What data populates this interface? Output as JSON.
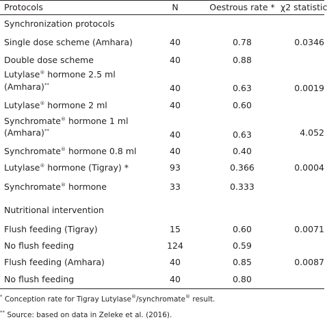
{
  "header": {
    "protocols": "Protocols",
    "n": "N",
    "rate": "Oestrous rate *",
    "chi": "χ2 statistic"
  },
  "sections": {
    "sync": "Synchronization protocols",
    "nutri": "Nutritional intervention"
  },
  "rows": [
    {
      "label": "Single dose scheme (Amhara)",
      "n": "40",
      "rate": "0.78",
      "chi": "0.0346"
    },
    {
      "label": "Double dose scheme",
      "n": "40",
      "rate": "0.88",
      "chi": ""
    },
    {
      "label_a": "Lutylase",
      "label_b": " hormone 2.5 ml",
      "label_c": "(Amhara)",
      "mark": "**",
      "sup": "®",
      "n": "40",
      "rate": "0.63",
      "chi": "0.0019"
    },
    {
      "label_a": "Lutylase",
      "label_b": " hormone 2 ml",
      "sup": "®",
      "n": "40",
      "rate": "0.60",
      "chi": ""
    },
    {
      "label_a": "Synchromate",
      "label_b": " hormone 1 ml",
      "label_c": "(Amhara)",
      "mark": "**",
      "sup": "®",
      "n": "40",
      "rate": "0.63",
      "chi": "4.052"
    },
    {
      "label_a": "Synchromate",
      "label_b": " hormone 0.8 ml",
      "sup": "®",
      "n": "40",
      "rate": "0.40",
      "chi": ""
    },
    {
      "label_a": "Lutylase",
      "label_b": " hormone (Tigray) *",
      "sup": "®",
      "n": "93",
      "rate": "0.366",
      "chi": "0.0004"
    },
    {
      "label_a": "Synchromate",
      "label_b": " hormone",
      "sup": "®",
      "n": "33",
      "rate": "0.333",
      "chi": ""
    },
    {
      "label": "Flush feeding (Tigray)",
      "n": "15",
      "rate": "0.60",
      "chi": "0.0071"
    },
    {
      "label": "No flush feeding",
      "n": "124",
      "rate": "0.59",
      "chi": ""
    },
    {
      "label": "Flush feeding (Amhara)",
      "n": "40",
      "rate": "0.85",
      "chi": "0.0087"
    },
    {
      "label": "No flush feeding",
      "n": "40",
      "rate": "0.80",
      "chi": ""
    }
  ],
  "footnotes": {
    "f1_mark": "*",
    "f1_a": " Conception rate for Tigray Lutylase",
    "f1_b": "/synchromate",
    "f1_c": " result.",
    "f2_mark": "**",
    "f2_a": " Source: based on data in Zeleke et al. (2016)."
  }
}
